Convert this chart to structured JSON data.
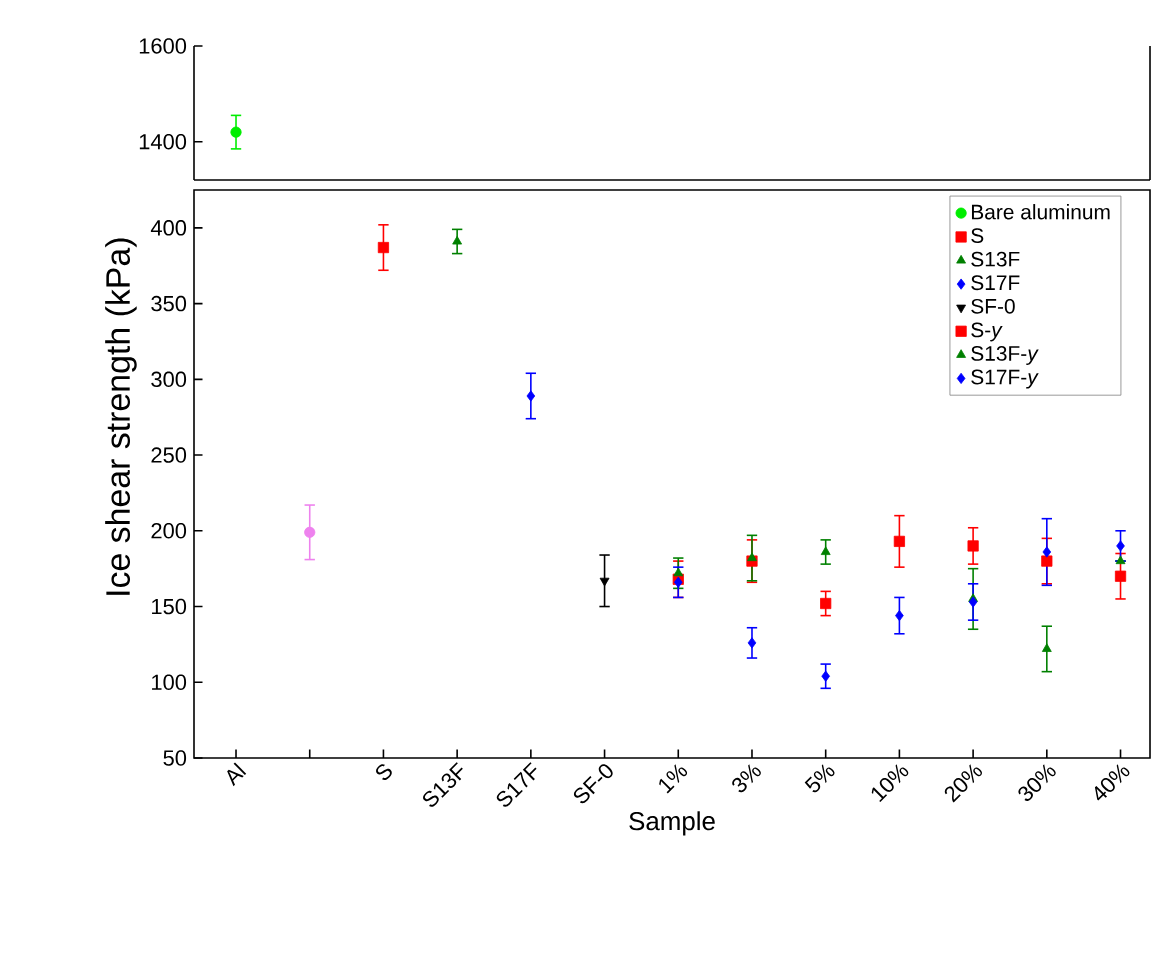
{
  "chart_data": [
    {
      "type": "scatter",
      "categories": [
        null,
        null,
        null,
        null,
        null,
        null,
        null,
        null,
        null,
        null,
        null,
        null,
        null
      ],
      "ylim": [
        1320,
        1600
      ],
      "yticks": [
        1400,
        1600
      ],
      "tick_labels": "y",
      "series": [
        {
          "color": "#00ee00",
          "marker": "circle",
          "values": [
            1420,
            null,
            null,
            null,
            null,
            null,
            null,
            null,
            null,
            null,
            null,
            null,
            null
          ],
          "errors": [
            35,
            null,
            null,
            null,
            null,
            null,
            null,
            null,
            null,
            null,
            null,
            null,
            null
          ]
        }
      ]
    },
    {
      "type": "scatter",
      "xlabel": "Sample",
      "ylabel": "Ice shear strength (kPa)",
      "categories": [
        "Al",
        null,
        "S",
        "S13F",
        "S17F",
        "SF-0",
        "1%",
        "3%",
        "5%",
        "10%",
        "20%",
        "30%",
        "40%"
      ],
      "ylim": [
        50,
        425
      ],
      "yticks": [
        50,
        100,
        150,
        200,
        250,
        300,
        350,
        400
      ],
      "legend": "top right",
      "series": [
        {
          "name": "Bare aluminum",
          "color": "#00ee00",
          "marker": "circle",
          "values": [
            null,
            null,
            null,
            null,
            null,
            null,
            null,
            null,
            null,
            null,
            null,
            null,
            null
          ]
        },
        {
          "color": "#ee82ee",
          "marker": "circle",
          "values": [
            null,
            199,
            null,
            null,
            null,
            null,
            null,
            null,
            null,
            null,
            null,
            null,
            null
          ],
          "errors": [
            null,
            18,
            null,
            null,
            null,
            null,
            null,
            null,
            null,
            null,
            null,
            null,
            null
          ]
        },
        {
          "name": "S",
          "color": "#ff0000",
          "marker": "square",
          "values": [
            null,
            null,
            387,
            null,
            null,
            null,
            null,
            null,
            null,
            null,
            null,
            null,
            null
          ],
          "errors": [
            null,
            null,
            15,
            null,
            null,
            null,
            null,
            null,
            null,
            null,
            null,
            null,
            null
          ]
        },
        {
          "name": "S13F",
          "color": "#008000",
          "marker": "triangle",
          "values": [
            null,
            null,
            null,
            391,
            null,
            null,
            null,
            null,
            null,
            null,
            null,
            null,
            null
          ],
          "errors": [
            null,
            null,
            null,
            8,
            null,
            null,
            null,
            null,
            null,
            null,
            null,
            null,
            null
          ]
        },
        {
          "name": "S17F",
          "color": "#0000ff",
          "marker": "diamond",
          "values": [
            null,
            null,
            null,
            null,
            289,
            null,
            null,
            null,
            null,
            null,
            null,
            null,
            null
          ],
          "errors": [
            null,
            null,
            null,
            null,
            15,
            null,
            null,
            null,
            null,
            null,
            null,
            null,
            null
          ]
        },
        {
          "name": "SF-0",
          "color": "#000000",
          "marker": "triangle down",
          "values": [
            null,
            null,
            null,
            null,
            null,
            167,
            null,
            null,
            null,
            null,
            null,
            null,
            null
          ],
          "errors": [
            null,
            null,
            null,
            null,
            null,
            17,
            null,
            null,
            null,
            null,
            null,
            null,
            null
          ]
        },
        {
          "name": "S-*y*",
          "color": "#ff0000",
          "marker": "square",
          "values": [
            null,
            null,
            null,
            null,
            null,
            null,
            168,
            180,
            152,
            193,
            190,
            180,
            170
          ],
          "errors": [
            null,
            null,
            null,
            null,
            null,
            null,
            12,
            14,
            8,
            17,
            12,
            15,
            15
          ]
        },
        {
          "name": "S13F-*y*",
          "color": "#008000",
          "marker": "triangle",
          "values": [
            null,
            null,
            null,
            null,
            null,
            null,
            172,
            182,
            186,
            null,
            155,
            122,
            180
          ],
          "errors": [
            null,
            null,
            null,
            null,
            null,
            null,
            10,
            15,
            8,
            null,
            20,
            15,
            null
          ]
        },
        {
          "name": "S17F-*y*",
          "color": "#0000ff",
          "marker": "diamond",
          "values": [
            null,
            null,
            null,
            null,
            null,
            null,
            166,
            126,
            104,
            144,
            153,
            186,
            190
          ],
          "errors": [
            null,
            null,
            null,
            null,
            null,
            null,
            10,
            10,
            8,
            12,
            12,
            22,
            10
          ]
        }
      ]
    }
  ]
}
